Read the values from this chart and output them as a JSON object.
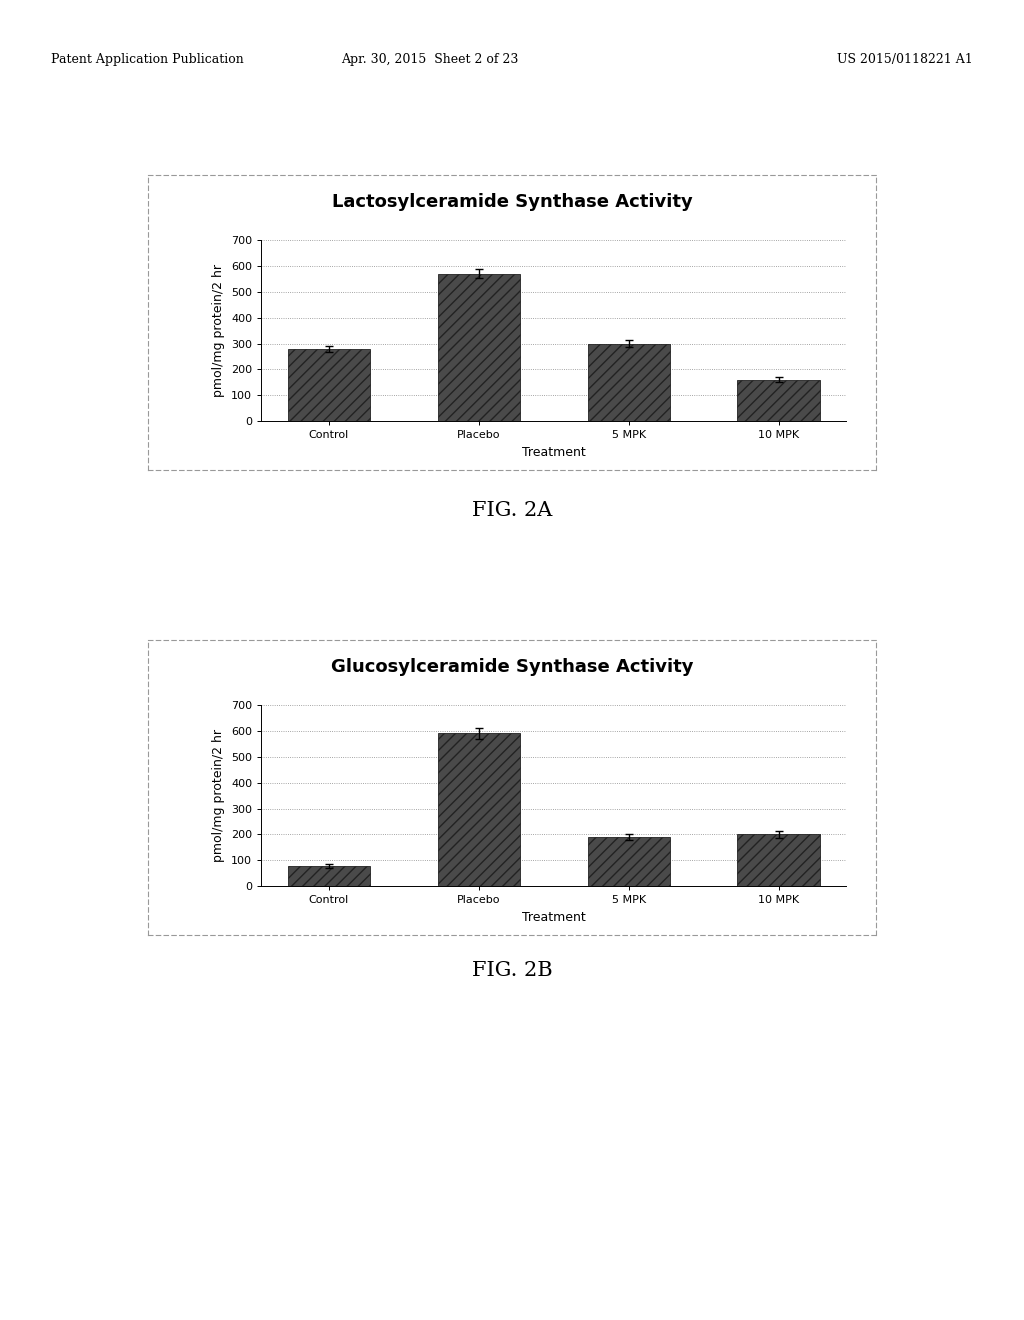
{
  "fig2a": {
    "title": "Lactosylceramide Synthase Activity",
    "categories": [
      "Control",
      "Placebo",
      "5 MPK",
      "10 MPK"
    ],
    "values": [
      280,
      570,
      300,
      160
    ],
    "errors": [
      12,
      18,
      15,
      10
    ],
    "ylabel": "pmol/mg protein/2 hr",
    "xlabel": "Treatment",
    "ylim": [
      0,
      700
    ],
    "yticks": [
      0,
      100,
      200,
      300,
      400,
      500,
      600,
      700
    ],
    "fig_label": "FIG. 2A"
  },
  "fig2b": {
    "title": "Glucosylceramide Synthase Activity",
    "categories": [
      "Control",
      "Placebo",
      "5 MPK",
      "10 MPK"
    ],
    "values": [
      80,
      590,
      190,
      200
    ],
    "errors": [
      8,
      20,
      12,
      12
    ],
    "ylabel": "pmol/mg protein/2 hr",
    "xlabel": "Treatment",
    "ylim": [
      0,
      700
    ],
    "yticks": [
      0,
      100,
      200,
      300,
      400,
      500,
      600,
      700
    ],
    "fig_label": "FIG. 2B"
  },
  "bar_color": "#4a4a4a",
  "bar_hatch": "///",
  "background_color": "#ffffff",
  "grid_color": "#aaaaaa",
  "header_text": "Patent Application Publication",
  "header_date": "Apr. 30, 2015  Sheet 2 of 23",
  "header_right": "US 2015/0118221 A1",
  "title_fontsize": 13,
  "label_fontsize": 9,
  "tick_fontsize": 8,
  "fig_label_fontsize": 15
}
